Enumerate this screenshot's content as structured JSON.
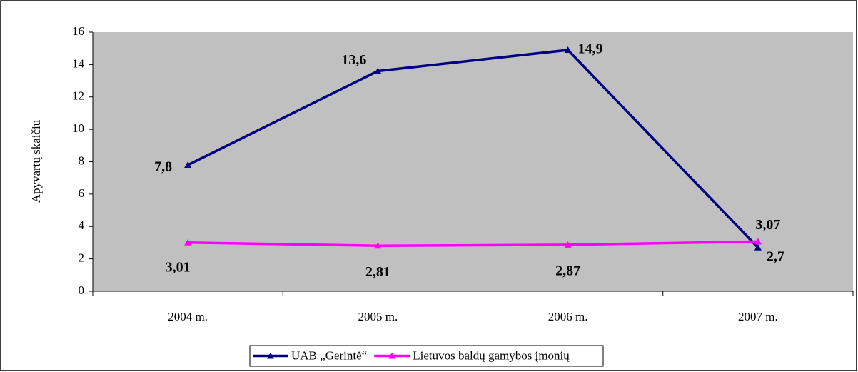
{
  "chart_data": {
    "type": "line",
    "y_label": "Apyvartų skaičiu",
    "categories": [
      "2004 m.",
      "2005 m.",
      "2006 m.",
      "2007 m."
    ],
    "series": [
      {
        "name": "UAB „Gerintė“",
        "color": "#000080",
        "values": [
          7.8,
          13.6,
          14.9,
          2.7
        ],
        "value_labels": [
          "7,8",
          "13,6",
          "14,9",
          "2,7"
        ]
      },
      {
        "name": "Lietuvos baldų gamybos įmonių",
        "color": "#ff00ff",
        "values": [
          3.01,
          2.81,
          2.87,
          3.07
        ],
        "value_labels": [
          "3,01",
          "2,81",
          "2,87",
          "3,07"
        ]
      }
    ],
    "ylim": [
      0,
      16
    ],
    "yticks": [
      0,
      2,
      4,
      6,
      8,
      10,
      12,
      14,
      16
    ],
    "plot_background": "#c0c0c0",
    "legend": "bottom"
  }
}
